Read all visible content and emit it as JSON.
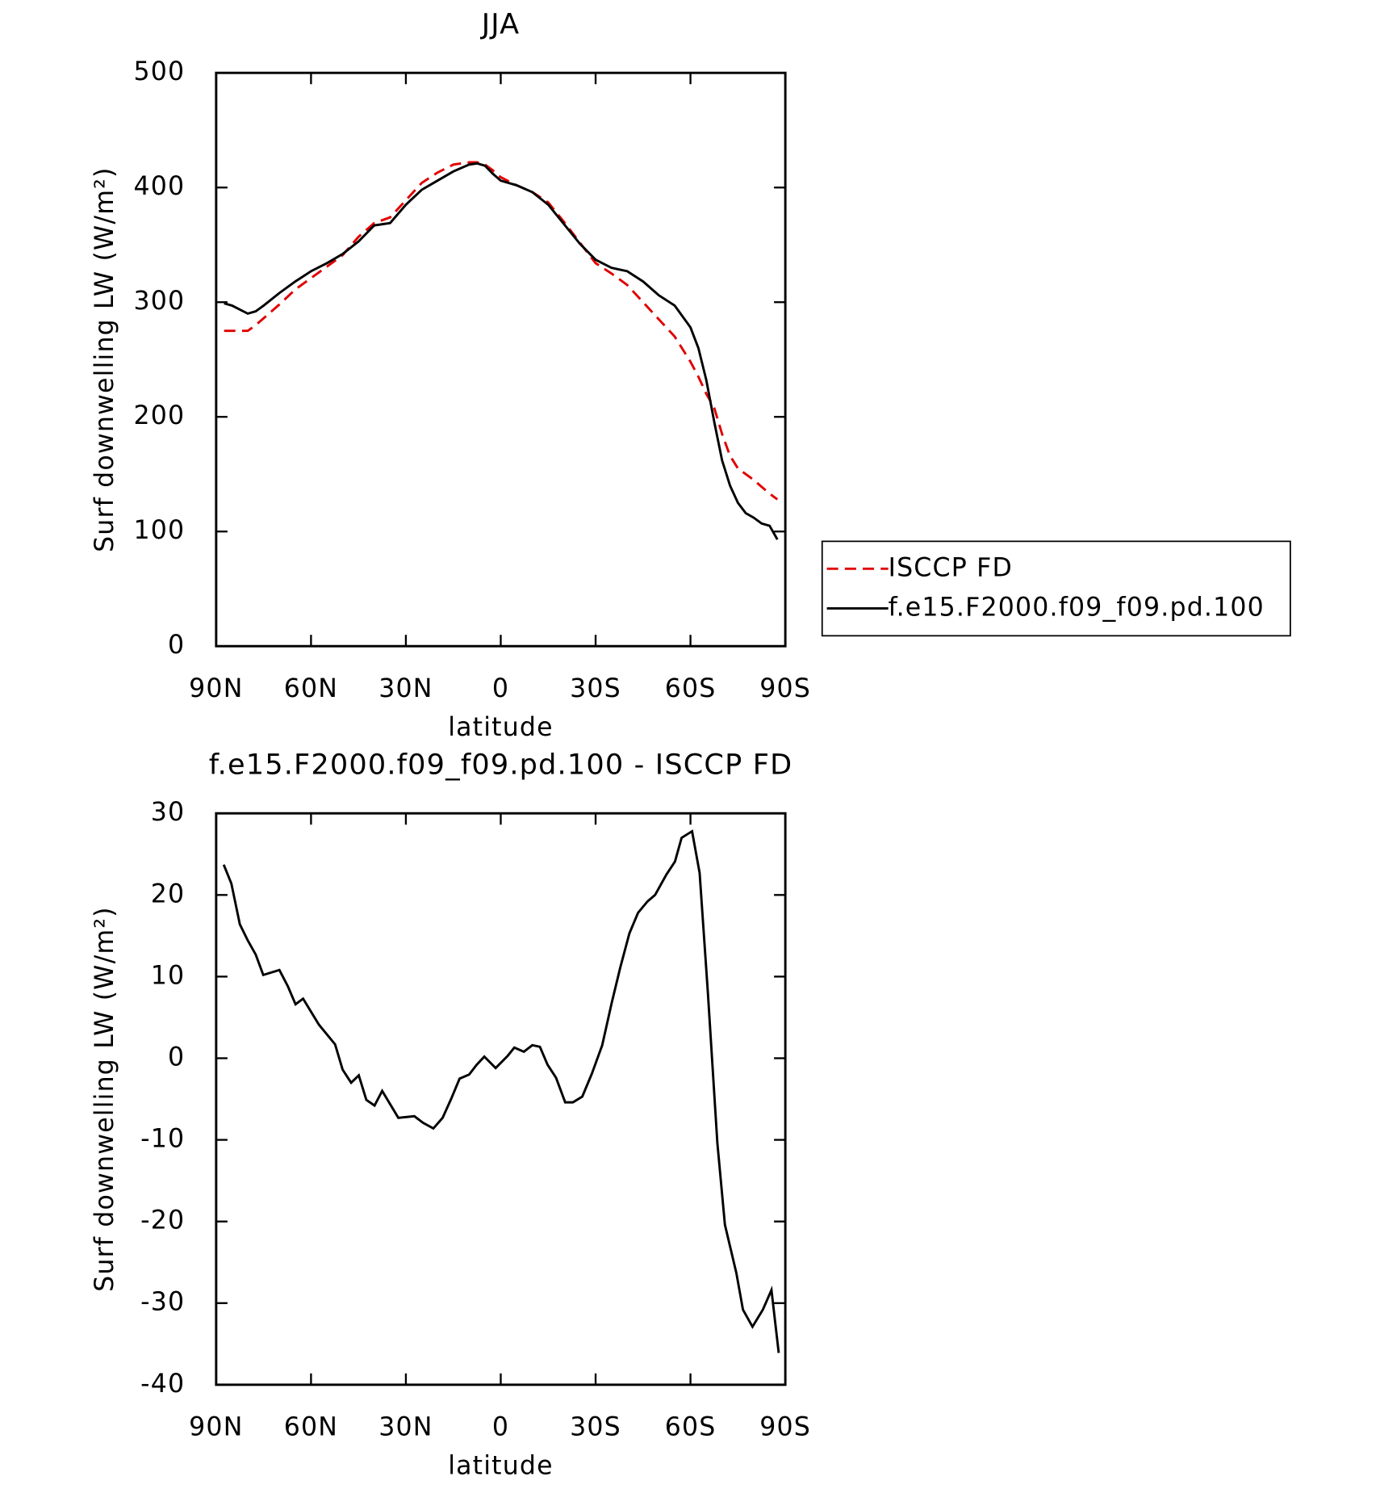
{
  "chart_data": [
    {
      "type": "line",
      "title": "JJA",
      "xlabel": "latitude",
      "ylabel": "Surf downwelling LW (W/m²)",
      "x": [
        87.5,
        85,
        80,
        77.5,
        75,
        70,
        65,
        60,
        55,
        50,
        45,
        40,
        35,
        30,
        25,
        20,
        15,
        10,
        7.5,
        5,
        2.5,
        0,
        -5,
        -10,
        -15,
        -20,
        -25,
        -30,
        -35,
        -40,
        -45,
        -50,
        -55,
        -60,
        -62.5,
        -65,
        -67.5,
        -70,
        -72.5,
        -75,
        -77.5,
        -80,
        -82.5,
        -85,
        -87.5
      ],
      "series": [
        {
          "name": "ISCCP FD",
          "color": "#e00000",
          "dashed": true,
          "values": [
            275,
            275,
            275,
            280,
            286,
            298,
            311,
            321,
            331,
            341,
            357,
            369,
            374,
            389,
            404,
            413,
            420,
            422,
            422,
            420,
            415,
            409,
            402,
            396,
            387,
            370,
            352,
            334,
            325,
            315,
            300,
            285,
            270,
            248,
            235,
            220,
            208,
            185,
            166,
            155,
            150,
            145,
            139,
            133,
            128
          ]
        },
        {
          "name": "f.e15.F2000.f09_f09.pd.100",
          "color": "#000000",
          "dashed": false,
          "values": [
            299,
            297,
            290,
            292,
            297,
            308,
            318,
            327,
            334,
            342,
            353,
            367,
            369,
            385,
            398,
            406,
            414,
            420,
            421,
            419,
            412,
            406,
            402,
            396,
            385,
            368,
            351,
            337,
            330,
            327,
            318,
            306,
            297,
            278,
            260,
            232,
            196,
            162,
            140,
            125,
            116,
            112,
            107,
            105,
            93
          ]
        }
      ],
      "xlim": [
        90,
        -90
      ],
      "xticks": [
        {
          "value": 90,
          "label": "90N"
        },
        {
          "value": 60,
          "label": "60N"
        },
        {
          "value": 30,
          "label": "30N"
        },
        0,
        {
          "value": -30,
          "label": "30S"
        },
        {
          "value": -60,
          "label": "60S"
        },
        {
          "value": -90,
          "label": "90S"
        }
      ],
      "ylim": [
        0,
        500
      ],
      "yticks": [
        0,
        100,
        200,
        300,
        400,
        500
      ],
      "legend": "right"
    },
    {
      "type": "line",
      "title": "f.e15.F2000.f09_f09.pd.100 - ISCCP FD",
      "xlabel": "latitude",
      "ylabel": "Surf downwelling LW (W/m²)",
      "x": [
        87.6,
        85.2,
        82.5,
        80.1,
        77.5,
        75.1,
        70.0,
        67.3,
        64.9,
        62.5,
        57.5,
        52.4,
        50.0,
        47.3,
        44.9,
        42.5,
        39.9,
        37.5,
        32.4,
        27.3,
        24.6,
        21.3,
        18.4,
        15.7,
        13.0,
        10.0,
        7.6,
        5.2,
        1.6,
        -2.2,
        -4.3,
        -7.3,
        -10.0,
        -12.4,
        -14.8,
        -17.5,
        -20.4,
        -22.8,
        -25.8,
        -28.8,
        -32.1,
        -35.1,
        -37.8,
        -40.7,
        -43.4,
        -46.4,
        -48.8,
        -52.4,
        -55.1,
        -57.2,
        -60.5,
        -62.9,
        -65.5,
        -68.5,
        -70.9,
        -74.5,
        -76.6,
        -79.6,
        -82.9,
        -85.6,
        -87.9
      ],
      "values": [
        23.7,
        21.4,
        16.4,
        14.5,
        12.7,
        10.2,
        10.8,
        8.8,
        6.6,
        7.3,
        4.1,
        1.7,
        -1.4,
        -3.0,
        -2.1,
        -5.1,
        -5.8,
        -4.0,
        -7.3,
        -7.1,
        -7.9,
        -8.6,
        -7.3,
        -5.0,
        -2.5,
        -2.0,
        -0.8,
        0.2,
        -1.2,
        0.3,
        1.3,
        0.8,
        1.6,
        1.4,
        -0.8,
        -2.4,
        -5.4,
        -5.4,
        -4.7,
        -1.9,
        1.6,
        6.8,
        11.1,
        15.3,
        17.8,
        19.2,
        20.0,
        22.5,
        24.1,
        27.0,
        27.8,
        22.7,
        8.1,
        -10.4,
        -20.4,
        -26.3,
        -30.8,
        -32.9,
        -30.8,
        -28.4,
        -36.1
      ],
      "color": "#000000",
      "xlim": [
        90,
        -90
      ],
      "xticks": [
        {
          "value": 90,
          "label": "90N"
        },
        {
          "value": 60,
          "label": "60N"
        },
        {
          "value": 30,
          "label": "30N"
        },
        0,
        {
          "value": -30,
          "label": "30S"
        },
        {
          "value": -60,
          "label": "60S"
        },
        {
          "value": -90,
          "label": "90S"
        }
      ],
      "ylim": [
        -40,
        30
      ],
      "yticks": [
        -40,
        -30,
        -20,
        -10,
        0,
        10,
        20,
        30
      ]
    }
  ]
}
